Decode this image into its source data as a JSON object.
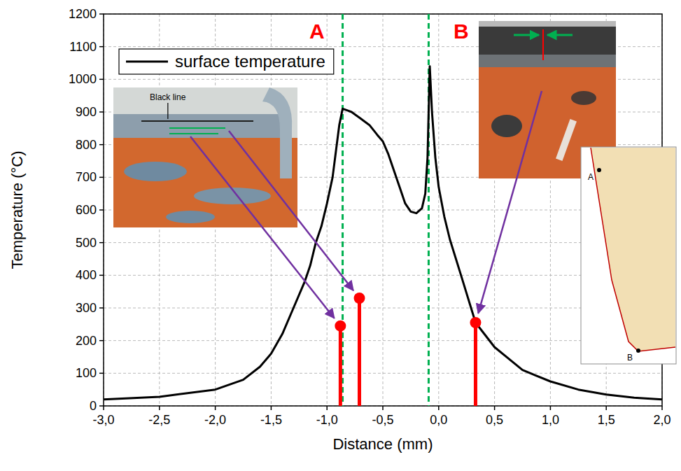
{
  "chart_data": {
    "type": "line",
    "x_label": "Distance (mm)",
    "y_label": "Temperature (°C)",
    "xlim": [
      -3.0,
      2.0
    ],
    "ylim": [
      0,
      1200
    ],
    "xticks": [
      {
        "value": -3.0,
        "label": "-3,0"
      },
      {
        "value": -2.5,
        "label": "-2,5"
      },
      {
        "value": -2.0,
        "label": "-2,0"
      },
      {
        "value": -1.5,
        "label": "-1,5"
      },
      {
        "value": -1.0,
        "label": "-1,0"
      },
      {
        "value": -0.5,
        "label": "-0,5"
      },
      {
        "value": 0.0,
        "label": "0,0"
      },
      {
        "value": 0.5,
        "label": "0,5"
      },
      {
        "value": 1.0,
        "label": "1,0"
      },
      {
        "value": 1.5,
        "label": "1,5"
      },
      {
        "value": 2.0,
        "label": "2,0"
      }
    ],
    "yticks": [
      0,
      100,
      200,
      300,
      400,
      500,
      600,
      700,
      800,
      900,
      1000,
      1100,
      1200
    ],
    "grid": true,
    "legend": "upper left",
    "series": [
      {
        "name": "surface temperature",
        "type": "line",
        "color": "#000000",
        "line_style": "solid",
        "x": [
          -3.0,
          -2.5,
          -2.0,
          -1.75,
          -1.6,
          -1.5,
          -1.4,
          -1.3,
          -1.2,
          -1.15,
          -1.1,
          -1.05,
          -1.0,
          -0.95,
          -0.92,
          -0.89,
          -0.86,
          -0.82,
          -0.78,
          -0.7,
          -0.62,
          -0.55,
          -0.5,
          -0.45,
          -0.4,
          -0.35,
          -0.3,
          -0.25,
          -0.2,
          -0.15,
          -0.12,
          -0.1,
          -0.08,
          -0.06,
          -0.03,
          0.0,
          0.05,
          0.1,
          0.2,
          0.33,
          0.5,
          0.75,
          1.0,
          1.25,
          1.5,
          1.75,
          2.0
        ],
        "values": [
          20,
          28,
          50,
          80,
          120,
          160,
          220,
          300,
          380,
          430,
          500,
          550,
          620,
          700,
          780,
          860,
          910,
          905,
          900,
          880,
          860,
          830,
          810,
          770,
          720,
          670,
          620,
          595,
          590,
          605,
          650,
          760,
          1040,
          900,
          760,
          670,
          580,
          510,
          400,
          255,
          180,
          110,
          75,
          50,
          35,
          25,
          20
        ]
      },
      {
        "type": "stem",
        "color": "#ff0000",
        "marker": "circle",
        "x": [
          -0.88,
          -0.71,
          0.33
        ],
        "values": [
          245,
          330,
          255
        ]
      }
    ],
    "reference_lines": {
      "x": [
        -0.86,
        -0.09
      ],
      "color": "#00b050",
      "line_style": "dashed"
    },
    "annotations": [
      {
        "text": "A",
        "x": -1.09,
        "y": 1125,
        "color": "#ff0000"
      },
      {
        "text": "B",
        "x": 0.2,
        "y": 1125,
        "color": "#ff0000"
      }
    ],
    "insets": {
      "photo_label": "Black line",
      "diagram_labels": [
        "A",
        "B"
      ]
    }
  }
}
